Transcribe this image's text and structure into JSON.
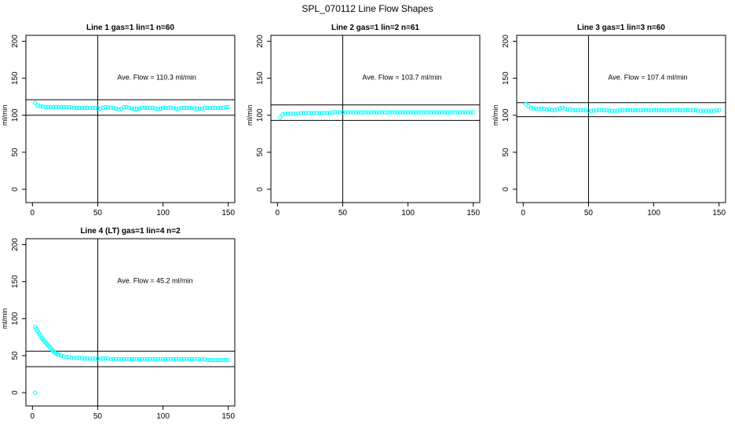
{
  "page": {
    "title": "SPL_070112  Line Flow Shapes"
  },
  "chart_data": [
    {
      "type": "scatter",
      "title": "Line 1 gas=1 lin=1 n=60",
      "ylabel": "ml/min",
      "xlim": [
        -5,
        155
      ],
      "ylim": [
        -18,
        208
      ],
      "xticks": [
        0,
        50,
        100,
        150
      ],
      "yticks": [
        0,
        50,
        100,
        150,
        200
      ],
      "vline": 50,
      "hlines": [
        121,
        100
      ],
      "annotation": "Ave. Flow =  110.3  ml/min",
      "color": "#00ffff",
      "x": [
        2,
        4,
        6,
        8,
        10,
        12,
        14,
        16,
        18,
        20,
        22,
        24,
        26,
        28,
        30,
        32,
        34,
        36,
        38,
        40,
        42,
        44,
        46,
        48,
        50,
        52,
        54,
        56,
        58,
        60,
        62,
        64,
        66,
        68,
        70,
        72,
        74,
        76,
        78,
        80,
        82,
        84,
        86,
        88,
        90,
        92,
        94,
        96,
        98,
        100,
        102,
        104,
        106,
        108,
        110,
        112,
        114,
        116,
        118,
        120,
        122,
        124,
        126,
        128,
        130,
        132,
        134,
        136,
        138,
        140,
        142,
        144,
        146,
        148,
        150
      ],
      "y": [
        117,
        113,
        112,
        112,
        111,
        111,
        111,
        111,
        111,
        111,
        111,
        111,
        111,
        111,
        111,
        110,
        110,
        110,
        110,
        110,
        110,
        110,
        110,
        110,
        109,
        109,
        110,
        111,
        111,
        110,
        110,
        109,
        108,
        109,
        111,
        111,
        110,
        109,
        109,
        109,
        109,
        110,
        110,
        110,
        110,
        110,
        109,
        109,
        109,
        110,
        110,
        110,
        110,
        110,
        109,
        109,
        110,
        110,
        110,
        110,
        110,
        109,
        109,
        109,
        109,
        110,
        110,
        110,
        110,
        110,
        110,
        110,
        110,
        111,
        111
      ]
    },
    {
      "type": "scatter",
      "title": "Line 2 gas=1 lin=2 n=61",
      "ylabel": "ml/min",
      "xlim": [
        -5,
        155
      ],
      "ylim": [
        -18,
        208
      ],
      "xticks": [
        0,
        50,
        100,
        150
      ],
      "yticks": [
        0,
        50,
        100,
        150,
        200
      ],
      "vline": 50,
      "hlines": [
        114,
        93
      ],
      "annotation": "Ave. Flow =  103.7  ml/min",
      "color": "#00ffff",
      "x": [
        2,
        4,
        6,
        8,
        10,
        12,
        14,
        16,
        18,
        20,
        22,
        24,
        26,
        28,
        30,
        32,
        34,
        36,
        38,
        40,
        42,
        44,
        46,
        48,
        50,
        52,
        54,
        56,
        58,
        60,
        62,
        64,
        66,
        68,
        70,
        72,
        74,
        76,
        78,
        80,
        82,
        84,
        86,
        88,
        90,
        92,
        94,
        96,
        98,
        100,
        102,
        104,
        106,
        108,
        110,
        112,
        114,
        116,
        118,
        120,
        122,
        124,
        126,
        128,
        130,
        132,
        134,
        136,
        138,
        140,
        142,
        144,
        146,
        148,
        150
      ],
      "y": [
        97,
        101,
        102,
        102,
        102,
        102,
        102,
        102,
        103,
        103,
        103,
        103,
        103,
        103,
        103,
        103,
        103,
        103,
        103,
        103,
        104,
        104,
        104,
        104,
        104,
        104,
        104,
        104,
        104,
        104,
        104,
        104,
        104,
        104,
        104,
        104,
        104,
        104,
        104,
        104,
        104,
        104,
        104,
        104,
        104,
        104,
        104,
        104,
        104,
        104,
        104,
        104,
        104,
        104,
        104,
        104,
        104,
        104,
        104,
        104,
        104,
        104,
        104,
        104,
        104,
        104,
        104,
        104,
        104,
        104,
        104,
        104,
        104,
        104,
        104
      ]
    },
    {
      "type": "scatter",
      "title": "Line 3 gas=1 lin=3 n=60",
      "ylabel": "ml/min",
      "xlim": [
        -5,
        155
      ],
      "ylim": [
        -18,
        208
      ],
      "xticks": [
        0,
        50,
        100,
        150
      ],
      "yticks": [
        0,
        50,
        100,
        150,
        200
      ],
      "vline": 50,
      "hlines": [
        117,
        98
      ],
      "annotation": "Ave. Flow =  107.4  ml/min",
      "color": "#00ffff",
      "x": [
        2,
        4,
        6,
        8,
        10,
        12,
        14,
        16,
        18,
        20,
        22,
        24,
        26,
        28,
        30,
        32,
        34,
        36,
        38,
        40,
        42,
        44,
        46,
        48,
        50,
        52,
        54,
        56,
        58,
        60,
        62,
        64,
        66,
        68,
        70,
        72,
        74,
        76,
        78,
        80,
        82,
        84,
        86,
        88,
        90,
        92,
        94,
        96,
        98,
        100,
        102,
        104,
        106,
        108,
        110,
        112,
        114,
        116,
        118,
        120,
        122,
        124,
        126,
        128,
        130,
        132,
        134,
        136,
        138,
        140,
        142,
        144,
        146,
        148,
        150
      ],
      "y": [
        115,
        112,
        110,
        109,
        109,
        109,
        109,
        109,
        108,
        108,
        107,
        107,
        108,
        109,
        110,
        109,
        108,
        108,
        107,
        107,
        107,
        107,
        107,
        107,
        106,
        106,
        106,
        107,
        107,
        107,
        107,
        107,
        106,
        106,
        106,
        106,
        107,
        107,
        107,
        107,
        107,
        107,
        107,
        107,
        107,
        107,
        107,
        107,
        107,
        107,
        107,
        107,
        107,
        107,
        107,
        107,
        107,
        107,
        107,
        107,
        107,
        107,
        107,
        107,
        107,
        107,
        106,
        106,
        106,
        106,
        106,
        106,
        106,
        107,
        107
      ]
    },
    {
      "type": "scatter",
      "title": "Line 4 (LT) gas=1 lin=4 n=2",
      "ylabel": "ml/min",
      "xlim": [
        -5,
        155
      ],
      "ylim": [
        -18,
        208
      ],
      "xticks": [
        0,
        50,
        100,
        150
      ],
      "yticks": [
        0,
        50,
        100,
        150,
        200
      ],
      "vline": 50,
      "hlines": [
        56,
        35
      ],
      "annotation": "Ave. Flow =  45.2  ml/min",
      "color": "#00ffff",
      "x": [
        2,
        2,
        3,
        4,
        5,
        6,
        7,
        8,
        9,
        10,
        11,
        12,
        13,
        14,
        15,
        16,
        17,
        18,
        19,
        20,
        22,
        24,
        26,
        28,
        30,
        32,
        34,
        36,
        38,
        40,
        42,
        44,
        46,
        48,
        50,
        52,
        54,
        56,
        58,
        60,
        62,
        64,
        66,
        68,
        70,
        72,
        74,
        76,
        78,
        80,
        82,
        84,
        86,
        88,
        90,
        92,
        94,
        96,
        98,
        100,
        102,
        104,
        106,
        108,
        110,
        112,
        114,
        116,
        118,
        120,
        122,
        124,
        126,
        128,
        130,
        132,
        134,
        136,
        138,
        140,
        142,
        144,
        146,
        148,
        150
      ],
      "y": [
        0,
        89,
        86,
        83,
        80,
        77,
        74,
        72,
        70,
        68,
        66,
        64,
        62,
        60,
        58,
        56,
        54,
        53,
        52,
        51,
        50,
        49,
        48,
        48,
        47,
        47,
        47,
        47,
        47,
        46,
        46,
        46,
        46,
        46,
        46,
        46,
        46,
        46,
        46,
        45,
        45,
        45,
        45,
        45,
        45,
        45,
        45,
        45,
        45,
        45,
        45,
        45,
        45,
        45,
        45,
        45,
        45,
        45,
        45,
        45,
        45,
        45,
        45,
        45,
        45,
        45,
        45,
        45,
        45,
        45,
        45,
        45,
        45,
        45,
        45,
        45,
        44,
        44,
        44,
        44,
        44,
        44,
        44,
        44,
        44
      ]
    }
  ]
}
